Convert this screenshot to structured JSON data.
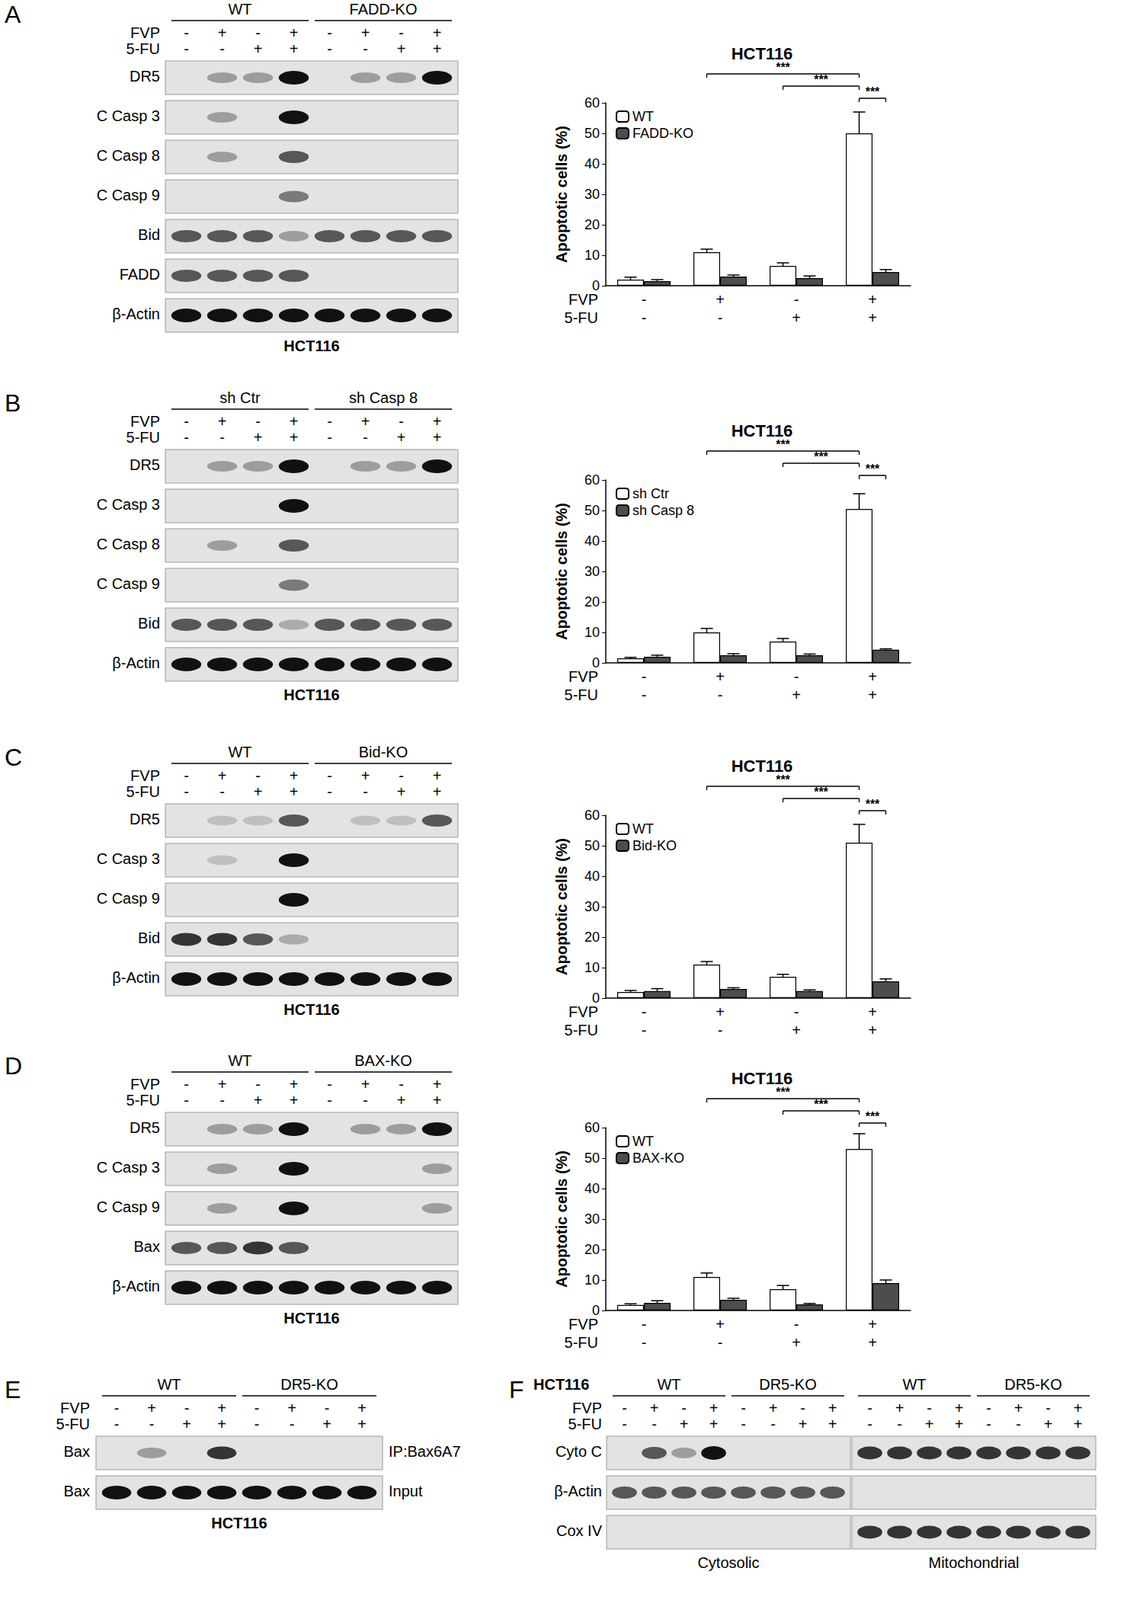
{
  "chart_data": [
    {
      "type": "bar",
      "title": "HCT116",
      "y_label": "Apoptotic cells (%)",
      "categories": [
        "-\n-",
        "+\n-",
        "-\n+",
        "+\n+"
      ],
      "category_rows": [
        "FVP",
        "5-FU"
      ],
      "series": [
        {
          "name": "WT",
          "color": "#ffffff",
          "values": [
            2,
            11,
            6.5,
            50
          ],
          "errors": [
            0.8,
            1,
            1,
            7
          ]
        },
        {
          "name": "FADD-KO",
          "color": "#4d4d4d",
          "values": [
            1.5,
            3,
            2.5,
            4.5
          ],
          "errors": [
            0.5,
            0.5,
            0.7,
            0.8
          ]
        }
      ],
      "ylim": [
        0,
        60
      ],
      "yticks": [
        0,
        10,
        20,
        30,
        40,
        50,
        60
      ],
      "grid": false,
      "legend": "top-left",
      "significance": [
        {
          "between": [
            [
              3,
              0
            ],
            [
              3,
              1
            ]
          ],
          "label": "***"
        },
        {
          "between": [
            [
              2,
              0
            ],
            [
              3,
              0
            ]
          ],
          "label": "***"
        },
        {
          "between": [
            [
              1,
              0
            ],
            [
              3,
              0
            ]
          ],
          "label": "***"
        }
      ]
    },
    {
      "type": "bar",
      "title": "HCT116",
      "y_label": "Apoptotic cells (%)",
      "categories": [
        "-\n-",
        "+\n-",
        "-\n+",
        "+\n+"
      ],
      "category_rows": [
        "FVP",
        "5-FU"
      ],
      "series": [
        {
          "name": "sh Ctr",
          "color": "#ffffff",
          "values": [
            1.5,
            10,
            7,
            50.5
          ],
          "errors": [
            0.3,
            1.3,
            1,
            5
          ]
        },
        {
          "name": "sh Casp 8",
          "color": "#4d4d4d",
          "values": [
            2,
            2.5,
            2.5,
            4.3
          ],
          "errors": [
            0.5,
            0.5,
            0.4,
            0.3
          ]
        }
      ],
      "ylim": [
        0,
        60
      ],
      "yticks": [
        0,
        10,
        20,
        30,
        40,
        50,
        60
      ],
      "grid": false,
      "legend": "top-left",
      "significance": [
        {
          "between": [
            [
              3,
              0
            ],
            [
              3,
              1
            ]
          ],
          "label": "***"
        },
        {
          "between": [
            [
              2,
              0
            ],
            [
              3,
              0
            ]
          ],
          "label": "***"
        },
        {
          "between": [
            [
              1,
              0
            ],
            [
              3,
              0
            ]
          ],
          "label": "***"
        }
      ]
    },
    {
      "type": "bar",
      "title": "HCT116",
      "y_label": "Apoptotic cells (%)",
      "categories": [
        "-\n-",
        "+\n-",
        "-\n+",
        "+\n+"
      ],
      "category_rows": [
        "FVP",
        "5-FU"
      ],
      "series": [
        {
          "name": "WT",
          "color": "#ffffff",
          "values": [
            2,
            11,
            7,
            51
          ],
          "errors": [
            0.5,
            1,
            0.8,
            6
          ]
        },
        {
          "name": "Bid-KO",
          "color": "#4d4d4d",
          "values": [
            2.3,
            3,
            2.3,
            5.5
          ],
          "errors": [
            0.8,
            0.4,
            0.4,
            0.8
          ]
        }
      ],
      "ylim": [
        0,
        60
      ],
      "yticks": [
        0,
        10,
        20,
        30,
        40,
        50,
        60
      ],
      "grid": false,
      "legend": "top-left",
      "significance": [
        {
          "between": [
            [
              3,
              0
            ],
            [
              3,
              1
            ]
          ],
          "label": "***"
        },
        {
          "between": [
            [
              2,
              0
            ],
            [
              3,
              0
            ]
          ],
          "label": "***"
        },
        {
          "between": [
            [
              1,
              0
            ],
            [
              3,
              0
            ]
          ],
          "label": "***"
        }
      ]
    },
    {
      "type": "bar",
      "title": "HCT116",
      "y_label": "Apoptotic cells (%)",
      "categories": [
        "-\n-",
        "+\n-",
        "-\n+",
        "+\n+"
      ],
      "category_rows": [
        "FVP",
        "5-FU"
      ],
      "series": [
        {
          "name": "WT",
          "color": "#ffffff",
          "values": [
            1.8,
            11,
            7,
            53
          ],
          "errors": [
            0.4,
            1.3,
            1.2,
            5
          ]
        },
        {
          "name": "BAX-KO",
          "color": "#4d4d4d",
          "values": [
            2.5,
            3.5,
            2,
            9
          ],
          "errors": [
            0.7,
            0.5,
            0.3,
            1
          ]
        }
      ],
      "ylim": [
        0,
        60
      ],
      "yticks": [
        0,
        10,
        20,
        30,
        40,
        50,
        60
      ],
      "grid": false,
      "legend": "top-left",
      "significance": [
        {
          "between": [
            [
              3,
              0
            ],
            [
              3,
              1
            ]
          ],
          "label": "***"
        },
        {
          "between": [
            [
              2,
              0
            ],
            [
              3,
              0
            ]
          ],
          "label": "***"
        },
        {
          "between": [
            [
              1,
              0
            ],
            [
              3,
              0
            ]
          ],
          "label": "***"
        }
      ]
    }
  ],
  "panels": [
    {
      "letter": "A",
      "groups": [
        "WT",
        "FADD-KO"
      ],
      "conditions": [
        {
          "label": "FVP",
          "marks": [
            "-",
            "+",
            "-",
            "+",
            "-",
            "+",
            "-",
            "+"
          ]
        },
        {
          "label": "5-FU",
          "marks": [
            "-",
            "-",
            "+",
            "+",
            "-",
            "-",
            "+",
            "+"
          ]
        }
      ],
      "rows": [
        {
          "label": "DR5",
          "bands": [
            0,
            1,
            1,
            3,
            0,
            1,
            1,
            3
          ]
        },
        {
          "label": "C Casp 3",
          "bands": [
            0,
            1,
            0,
            3,
            0,
            0,
            0,
            0
          ]
        },
        {
          "label": "C Casp 8",
          "bands": [
            0,
            1,
            0,
            2,
            0,
            0,
            0,
            0
          ]
        },
        {
          "label": "C Casp 9",
          "bands": [
            0,
            0,
            0,
            1.5,
            0,
            0,
            0,
            0
          ]
        },
        {
          "label": "Bid",
          "bands": [
            2,
            2,
            2,
            1,
            2,
            2,
            2,
            2
          ]
        },
        {
          "label": "FADD",
          "bands": [
            2,
            2,
            2,
            2,
            0,
            0,
            0,
            0
          ]
        },
        {
          "label": "β-Actin",
          "bands": [
            3,
            3,
            3,
            3,
            3,
            3,
            3,
            3
          ]
        }
      ],
      "footer": "HCT116"
    },
    {
      "letter": "B",
      "groups": [
        "sh Ctr",
        "sh Casp 8"
      ],
      "conditions": [
        {
          "label": "FVP",
          "marks": [
            "-",
            "+",
            "-",
            "+",
            "-",
            "+",
            "-",
            "+"
          ]
        },
        {
          "label": "5-FU",
          "marks": [
            "-",
            "-",
            "+",
            "+",
            "-",
            "-",
            "+",
            "+"
          ]
        }
      ],
      "rows": [
        {
          "label": "DR5",
          "bands": [
            0,
            1,
            1,
            3,
            0,
            1,
            1,
            3
          ]
        },
        {
          "label": "C Casp 3",
          "bands": [
            0,
            0,
            0,
            3,
            0,
            0,
            0,
            0
          ]
        },
        {
          "label": "C Casp 8",
          "bands": [
            0,
            1,
            0,
            2,
            0,
            0,
            0,
            0
          ]
        },
        {
          "label": "C Casp 9",
          "bands": [
            0,
            0,
            0,
            1.5,
            0,
            0,
            0,
            0
          ]
        },
        {
          "label": "Bid",
          "bands": [
            2,
            2,
            2,
            0.8,
            2,
            2,
            2,
            2
          ]
        },
        {
          "label": "β-Actin",
          "bands": [
            3,
            3,
            3,
            3,
            3,
            3,
            3,
            3
          ]
        }
      ],
      "footer": "HCT116"
    },
    {
      "letter": "C",
      "groups": [
        "WT",
        "Bid-KO"
      ],
      "conditions": [
        {
          "label": "FVP",
          "marks": [
            "-",
            "+",
            "-",
            "+",
            "-",
            "+",
            "-",
            "+"
          ]
        },
        {
          "label": "5-FU",
          "marks": [
            "-",
            "-",
            "+",
            "+",
            "-",
            "-",
            "+",
            "+"
          ]
        }
      ],
      "rows": [
        {
          "label": "DR5",
          "bands": [
            0,
            0.5,
            0.5,
            2,
            0,
            0.5,
            0.5,
            2
          ]
        },
        {
          "label": "C Casp 3",
          "bands": [
            0,
            0.5,
            0,
            3,
            0,
            0,
            0,
            0
          ]
        },
        {
          "label": "C Casp 9",
          "bands": [
            0,
            0,
            0,
            3,
            0,
            0,
            0,
            0
          ]
        },
        {
          "label": "Bid",
          "bands": [
            2.5,
            2.5,
            2,
            0.8,
            0,
            0,
            0,
            0
          ]
        },
        {
          "label": "β-Actin",
          "bands": [
            3,
            3,
            3,
            3,
            3,
            3,
            3,
            3
          ]
        }
      ],
      "footer": "HCT116"
    },
    {
      "letter": "D",
      "groups": [
        "WT",
        "BAX-KO"
      ],
      "conditions": [
        {
          "label": "FVP",
          "marks": [
            "-",
            "+",
            "-",
            "+",
            "-",
            "+",
            "-",
            "+"
          ]
        },
        {
          "label": "5-FU",
          "marks": [
            "-",
            "-",
            "+",
            "+",
            "-",
            "-",
            "+",
            "+"
          ]
        }
      ],
      "rows": [
        {
          "label": "DR5",
          "bands": [
            0,
            1,
            1,
            3,
            0,
            1,
            1,
            3
          ]
        },
        {
          "label": "C Casp 3",
          "bands": [
            0,
            1,
            0,
            3,
            0,
            0,
            0,
            1
          ]
        },
        {
          "label": "C Casp 9",
          "bands": [
            0,
            1,
            0,
            3,
            0,
            0,
            0,
            1
          ]
        },
        {
          "label": "Bax",
          "bands": [
            2,
            2,
            2.5,
            2,
            0,
            0,
            0,
            0
          ]
        },
        {
          "label": "β-Actin",
          "bands": [
            3,
            3,
            3,
            3,
            3,
            3,
            3,
            3
          ]
        }
      ],
      "footer": "HCT116"
    },
    {
      "letter": "E",
      "groups": [
        "WT",
        "DR5-KO"
      ],
      "conditions": [
        {
          "label": "FVP",
          "marks": [
            "-",
            "+",
            "-",
            "+",
            "-",
            "+",
            "-",
            "+"
          ]
        },
        {
          "label": "5-FU",
          "marks": [
            "-",
            "-",
            "+",
            "+",
            "-",
            "-",
            "+",
            "+"
          ]
        }
      ],
      "rows": [
        {
          "label": "Bax",
          "bands": [
            0,
            1,
            0,
            2.5,
            0,
            0,
            0,
            0
          ],
          "note": "IP:Bax6A7"
        },
        {
          "label": "Bax",
          "bands": [
            3,
            3,
            3,
            3,
            3,
            3,
            3,
            3
          ],
          "note": "Input"
        }
      ],
      "footer": "HCT116"
    },
    {
      "letter": "F",
      "header": "HCT116",
      "condition_labels": [
        "FVP",
        "5-FU"
      ],
      "row_labels": [
        "Cyto C",
        "β-Actin",
        "Cox IV"
      ],
      "blocks": [
        {
          "caption": "Cytosolic",
          "groups": [
            "WT",
            "DR5-KO"
          ],
          "marks": [
            [
              "-",
              "+",
              "-",
              "+",
              "-",
              "+",
              "-",
              "+"
            ],
            [
              "-",
              "-",
              "+",
              "+",
              "-",
              "-",
              "+",
              "+"
            ]
          ],
          "bands": [
            [
              0,
              2,
              1,
              3,
              0,
              0,
              0,
              0
            ],
            [
              2,
              2,
              2,
              2,
              2,
              2,
              2,
              2
            ],
            [
              0,
              0,
              0,
              0,
              0,
              0,
              0,
              0
            ]
          ]
        },
        {
          "caption": "Mitochondrial",
          "groups": [
            "WT",
            "DR5-KO"
          ],
          "marks": [
            [
              "-",
              "+",
              "-",
              "+",
              "-",
              "+",
              "-",
              "+"
            ],
            [
              "-",
              "-",
              "+",
              "+",
              "-",
              "-",
              "+",
              "+"
            ]
          ],
          "bands": [
            [
              2.5,
              2.5,
              2.5,
              2.5,
              2.5,
              2.5,
              2.5,
              2.5
            ],
            [
              0,
              0,
              0,
              0,
              0,
              0,
              0,
              0
            ],
            [
              2.5,
              2.5,
              2.5,
              2.5,
              2.5,
              2.5,
              2.5,
              2.5
            ]
          ]
        }
      ]
    }
  ]
}
